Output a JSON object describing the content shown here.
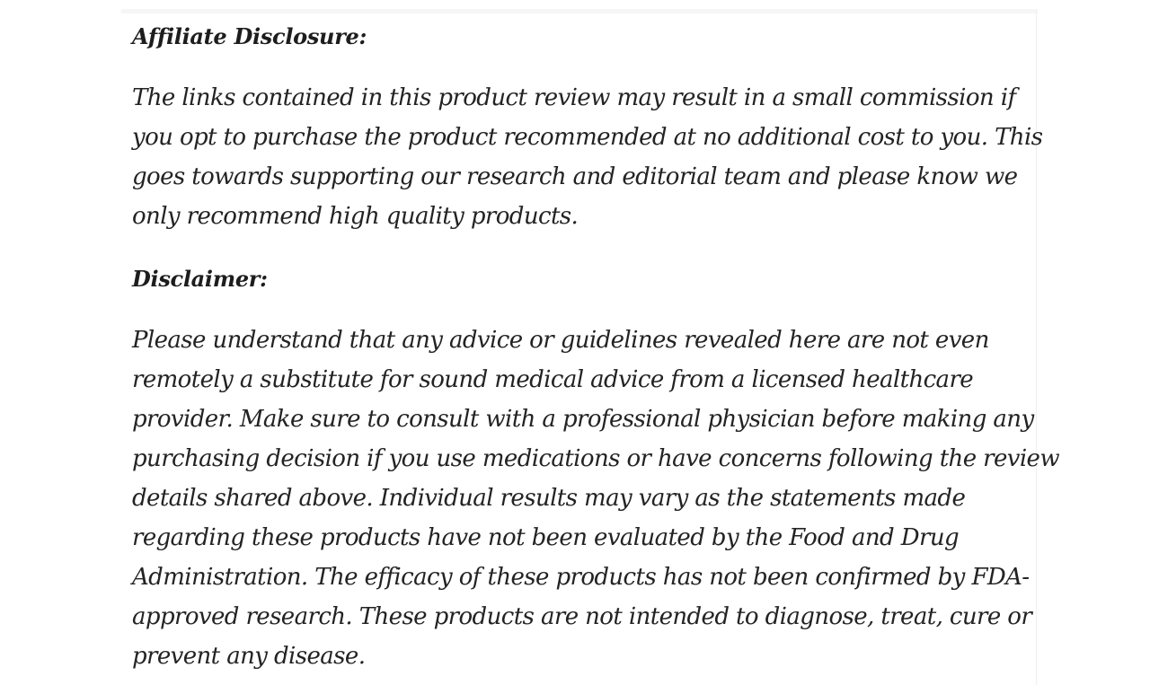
{
  "colors": {
    "background": "#ffffff",
    "text": "#232323",
    "heading_text": "#1d1d1d",
    "artifact_gray": "#f6f6f6"
  },
  "sections": [
    {
      "heading": "Affiliate Disclosure:",
      "lines": [
        "The links contained in this product review may result in a small commission if",
        "you opt to purchase the product recommended at no additional cost to you. This",
        "goes towards supporting our research and editorial team and please know we",
        "only recommend high quality products."
      ]
    },
    {
      "heading": "Disclaimer:",
      "lines": [
        "Please understand that any advice or guidelines revealed here are not even",
        "remotely a substitute for sound medical advice from a licensed healthcare",
        "provider. Make sure to consult with a professional physician before making any",
        "purchasing decision if you use medications or have concerns following the review",
        "details shared above. Individual results may vary as the statements made",
        "regarding these products have not been evaluated by the Food and Drug",
        "Administration. The efficacy of these products has not been confirmed by FDA-",
        "approved research. These products are not intended to diagnose, treat, cure or",
        "prevent any disease."
      ]
    }
  ]
}
